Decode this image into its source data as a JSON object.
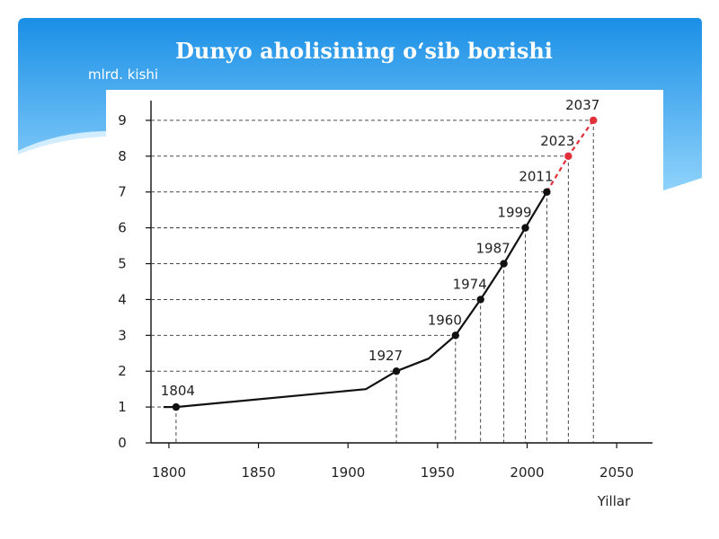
{
  "slide": {
    "title": "Dunyo aholisining o‘sib borishi",
    "colors": {
      "header_top": "#1a8fe6",
      "header_bottom": "#8fd2fb",
      "frame": "#2e9ff0"
    }
  },
  "chart_data": {
    "type": "line",
    "title": "Dunyo aholisining o‘sib borishi",
    "xlabel": "Yillar",
    "ylabel": "mlrd. kishi",
    "xlim": [
      1790,
      2070
    ],
    "ylim": [
      0,
      9.5
    ],
    "x_ticks": [
      1800,
      1850,
      1900,
      1950,
      2000,
      2050
    ],
    "y_ticks": [
      0,
      1,
      2,
      3,
      4,
      5,
      6,
      7,
      8,
      9
    ],
    "grid": false,
    "series": [
      {
        "color": "#111111",
        "points": [
          {
            "x": 1804,
            "y": 1,
            "label": "1804",
            "marker": true
          },
          {
            "x": 1910,
            "y": 1.5,
            "label": "",
            "marker": false
          },
          {
            "x": 1927,
            "y": 2,
            "label": "1927",
            "marker": true
          },
          {
            "x": 1945,
            "y": 2.35,
            "label": "",
            "marker": false
          },
          {
            "x": 1960,
            "y": 3,
            "label": "1960",
            "marker": true
          },
          {
            "x": 1974,
            "y": 4,
            "label": "1974",
            "marker": true
          },
          {
            "x": 1987,
            "y": 5,
            "label": "1987",
            "marker": true
          },
          {
            "x": 1999,
            "y": 6,
            "label": "1999",
            "marker": true
          },
          {
            "x": 2011,
            "y": 7,
            "label": "2011",
            "marker": true
          }
        ]
      },
      {
        "color": "#e0303a",
        "dashed": true,
        "points": [
          {
            "x": 2011,
            "y": 7,
            "label": "",
            "marker": false
          },
          {
            "x": 2023,
            "y": 8,
            "label": "2023",
            "marker": true
          },
          {
            "x": 2037,
            "y": 9,
            "label": "2037",
            "marker": true
          }
        ]
      }
    ]
  }
}
